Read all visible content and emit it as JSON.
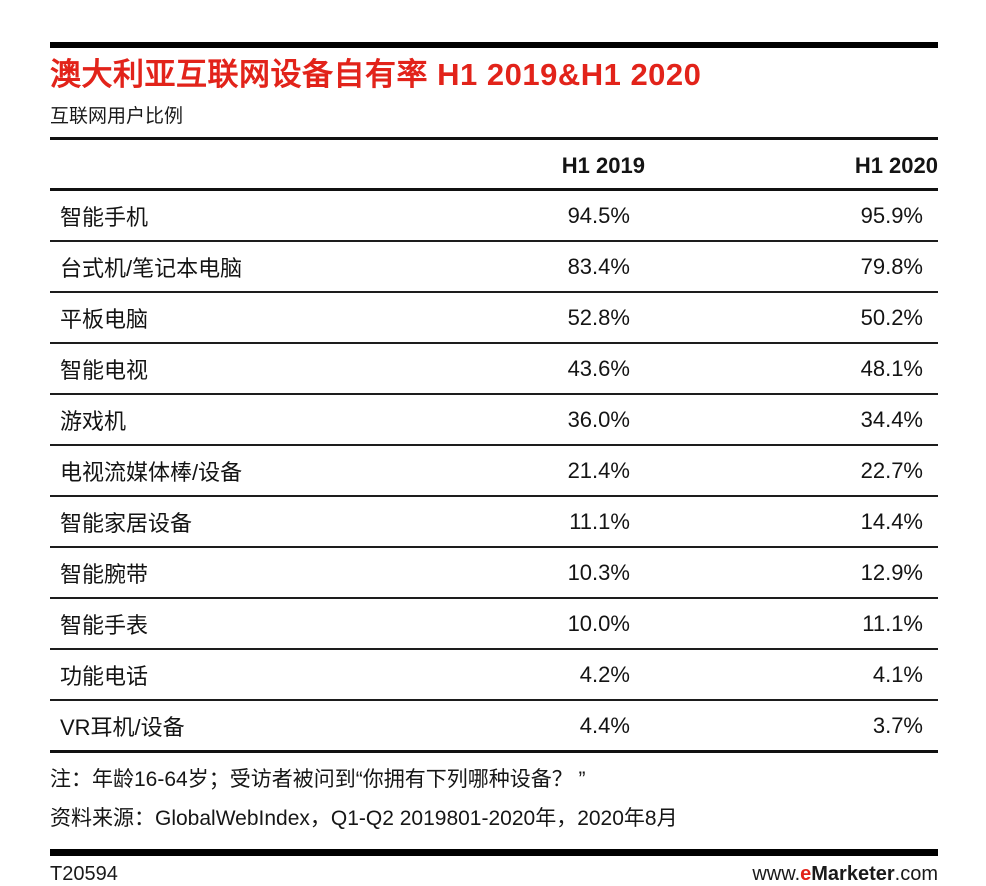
{
  "page": {
    "title": "澳大利亚互联网设备自有率 H1 2019&H1 2020",
    "subtitle": "互联网用户比例",
    "note": "注：年龄16-64岁；受访者被问到“你拥有下列哪种设备？ ”",
    "source": "资料来源：GlobalWebIndex，Q1-Q2 2019801-2020年，2020年8月",
    "footer": {
      "chart_id": "T20594",
      "website_prefix": "www.",
      "website_accent": "e",
      "website_brand": "Marketer",
      "website_suffix": ".com"
    },
    "colors": {
      "accent_red": "#e2231a",
      "text": "#151515",
      "rule": "#000000"
    }
  },
  "chart_data": {
    "type": "table",
    "title": "澳大利亚互联网设备自有率 H1 2019&H1 2020",
    "subtitle": "互联网用户比例",
    "columns": [
      "",
      "H1 2019",
      "H1 2020"
    ],
    "rows": [
      {
        "label": "智能手机",
        "h1_2019": "94.5%",
        "h1_2020": "95.9%"
      },
      {
        "label": "台式机/笔记本电脑",
        "h1_2019": "83.4%",
        "h1_2020": "79.8%"
      },
      {
        "label": "平板电脑",
        "h1_2019": "52.8%",
        "h1_2020": "50.2%"
      },
      {
        "label": "智能电视",
        "h1_2019": "43.6%",
        "h1_2020": "48.1%"
      },
      {
        "label": "游戏机",
        "h1_2019": "36.0%",
        "h1_2020": "34.4%"
      },
      {
        "label": "电视流媒体棒/设备",
        "h1_2019": "21.4%",
        "h1_2020": "22.7%"
      },
      {
        "label": "智能家居设备",
        "h1_2019": "11.1%",
        "h1_2020": "14.4%"
      },
      {
        "label": "智能腕带",
        "h1_2019": "10.3%",
        "h1_2020": "12.9%"
      },
      {
        "label": "智能手表",
        "h1_2019": "10.0%",
        "h1_2020": "11.1%"
      },
      {
        "label": "功能电话",
        "h1_2019": "4.2%",
        "h1_2020": "4.1%"
      },
      {
        "label": "VR耳机/设备",
        "h1_2019": "4.4%",
        "h1_2020": "3.7%"
      }
    ]
  }
}
